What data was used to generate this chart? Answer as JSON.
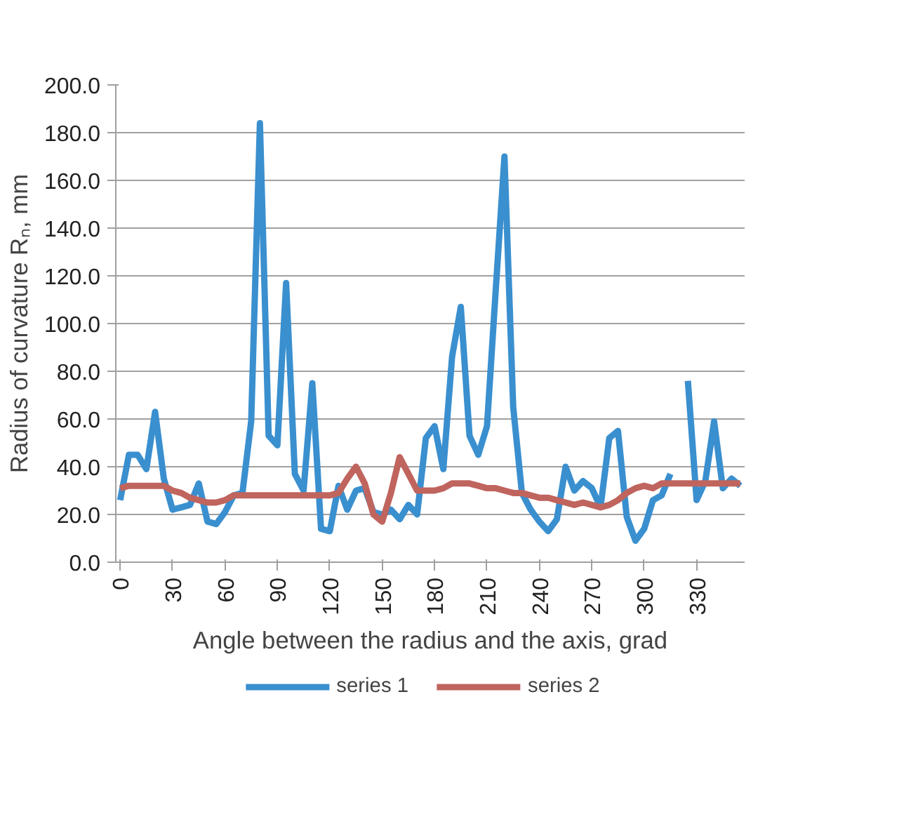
{
  "chart_data": {
    "type": "line",
    "xlabel": "Angle between the radius and the axis, grad",
    "ylabel": "Radius of curvature Rₙ, mm",
    "x": [
      0,
      5,
      10,
      15,
      20,
      25,
      30,
      35,
      40,
      45,
      50,
      55,
      60,
      65,
      70,
      75,
      80,
      85,
      90,
      95,
      100,
      105,
      110,
      115,
      120,
      125,
      130,
      135,
      140,
      145,
      150,
      155,
      160,
      165,
      170,
      175,
      180,
      185,
      190,
      195,
      200,
      205,
      210,
      215,
      220,
      225,
      230,
      235,
      240,
      245,
      250,
      255,
      260,
      265,
      270,
      275,
      280,
      285,
      290,
      295,
      300,
      305,
      310,
      315,
      320,
      325,
      330,
      335,
      340,
      345,
      350,
      355
    ],
    "series": [
      {
        "name": "series 1",
        "color": "#3a8fcf",
        "values": [
          26,
          45,
          45,
          39,
          63,
          35,
          22,
          23,
          24,
          33,
          17,
          16,
          21,
          28,
          29,
          59,
          184,
          53,
          49,
          117,
          37,
          30,
          75,
          14,
          13,
          32,
          22,
          30,
          31,
          21,
          20,
          22,
          18,
          24,
          20,
          52,
          57,
          39,
          86,
          107,
          53,
          45,
          57,
          114,
          170,
          65,
          29,
          22,
          17,
          13,
          18,
          40,
          30,
          34,
          31,
          23,
          52,
          55,
          19,
          9,
          14,
          26,
          28,
          37,
          null,
          76,
          26,
          34,
          59,
          31,
          35,
          32
        ]
      },
      {
        "name": "series 2",
        "color": "#c0645e",
        "values": [
          31,
          32,
          32,
          32,
          32,
          32,
          30,
          29,
          27,
          26,
          25,
          25,
          26,
          28,
          28,
          28,
          28,
          28,
          28,
          28,
          28,
          28,
          28,
          28,
          28,
          29,
          35,
          40,
          33,
          20,
          17,
          29,
          44,
          37,
          30,
          30,
          30,
          31,
          33,
          33,
          33,
          32,
          31,
          31,
          30,
          29,
          29,
          28,
          27,
          27,
          26,
          25,
          24,
          25,
          24,
          23,
          24,
          26,
          29,
          31,
          32,
          31,
          33,
          33,
          33,
          33,
          33,
          33,
          33,
          33,
          33,
          33
        ]
      }
    ],
    "xlim": [
      -2.5,
      357.5
    ],
    "xticks": [
      0,
      30,
      60,
      90,
      120,
      150,
      180,
      210,
      240,
      270,
      300,
      330
    ],
    "ylim": [
      0,
      200
    ],
    "yticks": [
      {
        "value": 0,
        "label": "0.0"
      },
      {
        "value": 20,
        "label": "20.0"
      },
      {
        "value": 40,
        "label": "40.0"
      },
      {
        "value": 60,
        "label": "60.0"
      },
      {
        "value": 80,
        "label": "80.0"
      },
      {
        "value": 100,
        "label": "100.0"
      },
      {
        "value": 120,
        "label": "120.0"
      },
      {
        "value": 140,
        "label": "140.0"
      },
      {
        "value": 160,
        "label": "160.0"
      },
      {
        "value": 180,
        "label": "180.0"
      },
      {
        "value": 200,
        "label": "200.0"
      }
    ],
    "grid": "y",
    "legend": "bottom",
    "marker": "none",
    "line_style": "solid"
  }
}
